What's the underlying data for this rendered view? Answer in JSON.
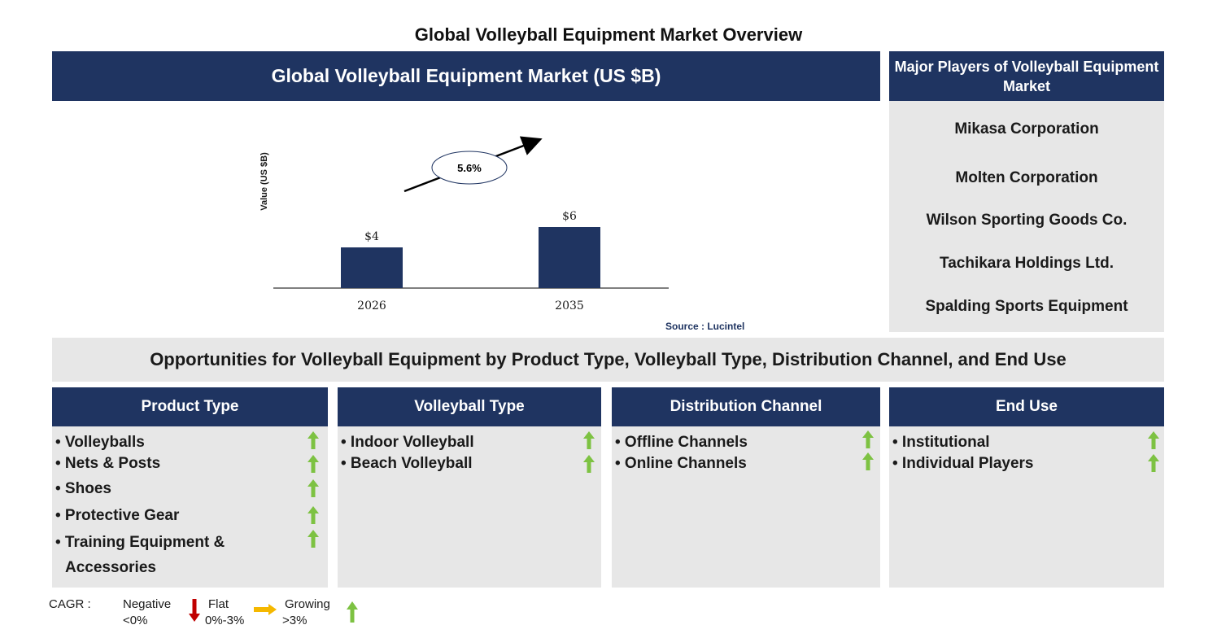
{
  "title": "Global Volleyball Equipment Market Overview",
  "chart_header": "Global Volleyball Equipment Market (US $B)",
  "chart_data": {
    "type": "bar",
    "categories": [
      "2026",
      "2035"
    ],
    "values": [
      4,
      6
    ],
    "value_labels": [
      "$4",
      "$6"
    ],
    "ylabel": "Value (US $B)",
    "cagr_label": "5.6%",
    "bar_color": "#1f3461"
  },
  "source": "Source : Lucintel",
  "players": {
    "header": "Major Players of Volleyball Equipment Market",
    "items": [
      "Mikasa Corporation",
      "Molten Corporation",
      "Wilson Sporting Goods Co.",
      "Tachikara Holdings Ltd.",
      "Spalding Sports Equipment"
    ]
  },
  "opportunities_title": "Opportunities for Volleyball Equipment by Product Type, Volleyball Type, Distribution Channel, and End Use",
  "segments": [
    {
      "header": "Product Type",
      "items": [
        "• Volleyballs",
        "• Nets & Posts",
        "• Shoes",
        "• Protective Gear",
        "• Training Equipment &",
        "Accessories"
      ]
    },
    {
      "header": "Volleyball Type",
      "items": [
        "• Indoor Volleyball",
        "• Beach Volleyball"
      ]
    },
    {
      "header": "Distribution Channel",
      "items": [
        "• Offline Channels",
        "• Online Channels"
      ]
    },
    {
      "header": "End Use",
      "items": [
        "• Institutional",
        "• Individual Players"
      ]
    }
  ],
  "legend": {
    "cagr": "CAGR :",
    "negative": "Negative",
    "negative_range": "<0%",
    "flat": "Flat",
    "flat_range": "0%-3%",
    "growing": "Growing",
    "growing_range": ">3%"
  },
  "colors": {
    "navy": "#1f3461",
    "grey": "#e7e7e7",
    "up_arrow": "#7dc242",
    "down_arrow": "#c00000",
    "flat_arrow": "#f5b800"
  }
}
